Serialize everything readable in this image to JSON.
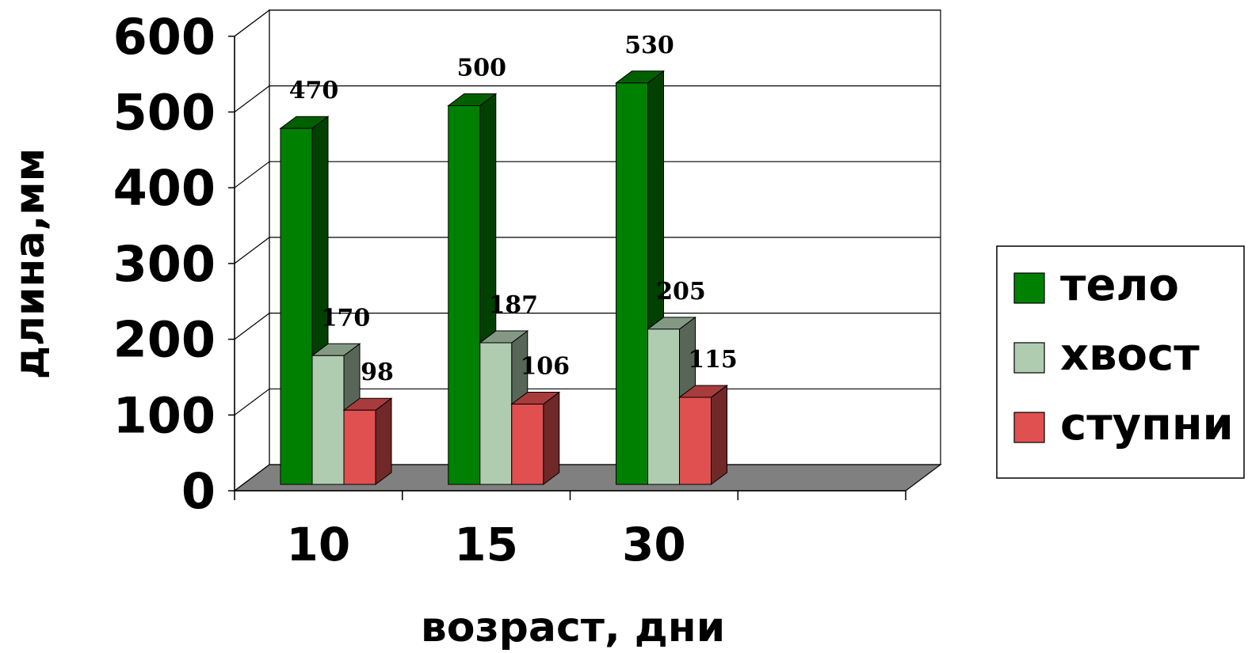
{
  "chart_data": {
    "type": "bar",
    "title": "",
    "xlabel": "возраст, дни",
    "ylabel": "длина,мм",
    "categories": [
      "10",
      "15",
      "30"
    ],
    "ylim": [
      0,
      600
    ],
    "yticks": [
      0,
      100,
      200,
      300,
      400,
      500,
      600
    ],
    "grid": true,
    "legend_position": "right",
    "series": [
      {
        "name": "тело",
        "values": [
          470,
          500,
          530
        ],
        "color": "#008000"
      },
      {
        "name": "хвост",
        "values": [
          170,
          187,
          205
        ],
        "color": "#b0ccb0"
      },
      {
        "name": "ступни",
        "values": [
          98,
          106,
          115
        ],
        "color": "#e05050"
      }
    ]
  }
}
